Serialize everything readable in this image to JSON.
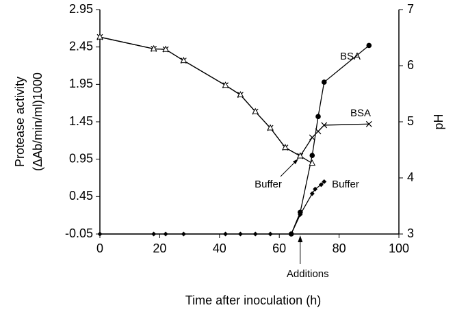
{
  "chart_data": {
    "type": "line",
    "xlabel": "Time after inoculation (h)",
    "ylabel": [
      "Protease activity",
      "(ΔAb/min/ml)1000"
    ],
    "y2label": "pH",
    "xlim": [
      0,
      100
    ],
    "xticks": [
      0,
      20,
      40,
      60,
      80,
      100
    ],
    "ylim": [
      -0.05,
      2.95
    ],
    "yticks": [
      -0.05,
      0.45,
      0.95,
      1.45,
      1.95,
      2.45,
      2.95
    ],
    "y2lim": [
      3,
      7
    ],
    "y2ticks": [
      3,
      4,
      5,
      6,
      7
    ],
    "annotation": "Additions",
    "annotation_x": 67,
    "series": [
      {
        "name": "BSA",
        "color": "#000000",
        "marker": "circle",
        "x": [
          64,
          67,
          71,
          73,
          75,
          90
        ],
        "values": [
          -0.05,
          0.24,
          1.0,
          1.52,
          1.98,
          2.47
        ]
      },
      {
        "name": "Buffer",
        "color": "#000000",
        "marker": "diamond",
        "x": [
          0,
          18,
          22,
          28,
          42,
          47,
          52,
          57,
          64,
          67,
          71,
          72,
          74,
          75
        ],
        "values": [
          -0.05,
          -0.05,
          -0.05,
          -0.05,
          -0.05,
          -0.05,
          -0.05,
          -0.05,
          -0.05,
          0.21,
          0.49,
          0.55,
          0.61,
          0.65
        ]
      },
      {
        "name": "BSA",
        "color": "#000000",
        "marker": "cross",
        "axis": "y2",
        "x": [
          0,
          18,
          22,
          28,
          42,
          47,
          52,
          57,
          62,
          67,
          71,
          73,
          75,
          90
        ],
        "values": [
          6.51,
          6.3,
          6.29,
          6.09,
          5.65,
          5.48,
          5.18,
          4.89,
          4.54,
          4.39,
          4.72,
          4.83,
          4.94,
          4.96
        ]
      },
      {
        "name": "Buffer",
        "color": "#000000",
        "marker": "triangle",
        "axis": "y2",
        "x": [
          0,
          18,
          22,
          28,
          42,
          47,
          52,
          57,
          62,
          67,
          71
        ],
        "values": [
          6.51,
          6.3,
          6.29,
          6.09,
          5.65,
          5.48,
          5.18,
          4.89,
          4.54,
          4.39,
          4.26
        ]
      }
    ]
  }
}
